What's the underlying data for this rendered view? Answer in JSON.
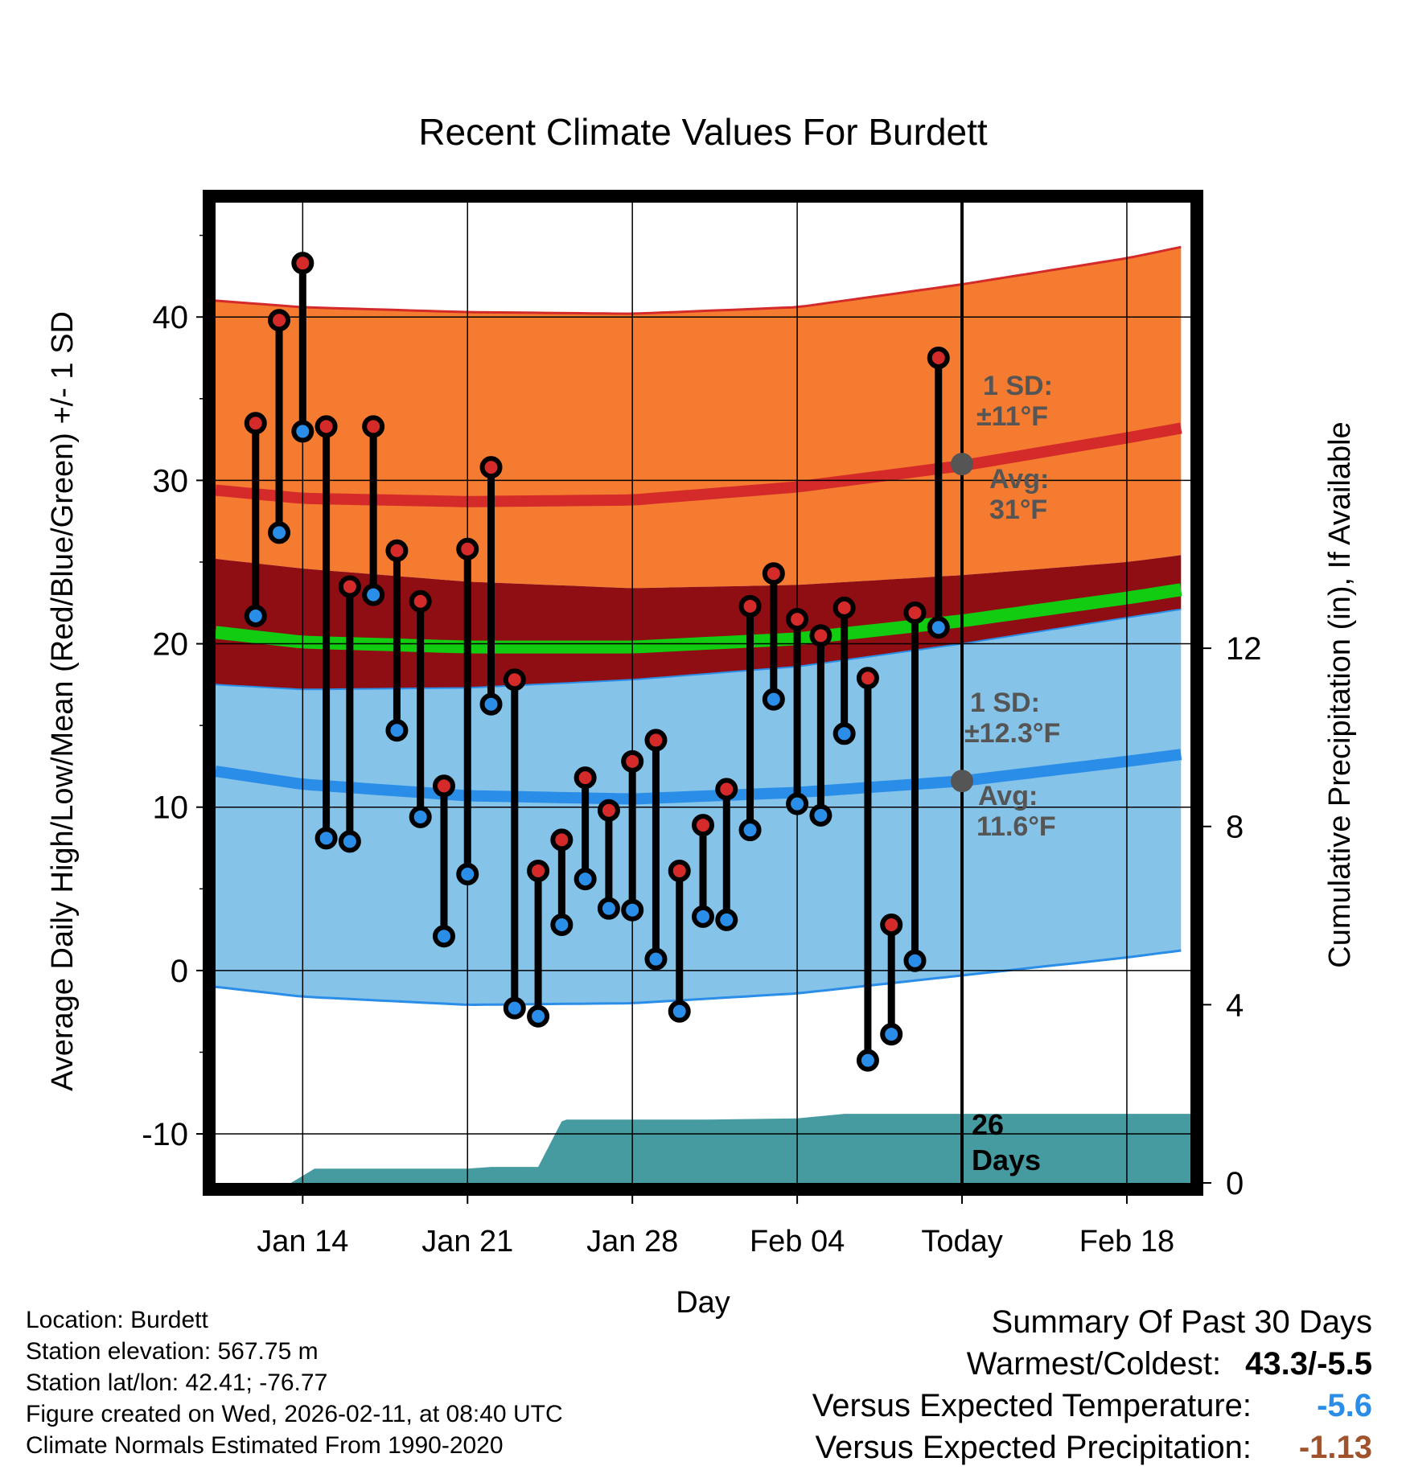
{
  "chart_data": {
    "type": "line",
    "title": "Recent Climate Values For Burdett",
    "xlabel": "Day",
    "ylabel": "Average Daily High/Low/Mean (Red/Blue/Green) +/- 1 SD",
    "y2label": "Cumulative Precipitation (in), If Available",
    "x_ticks": [
      "Jan 14",
      "Jan 21",
      "Jan 28",
      "Feb 04",
      "Today",
      "Feb 18"
    ],
    "x_tick_days": [
      3,
      10,
      17,
      24,
      31,
      38
    ],
    "xlim": [
      -0.7,
      40.7
    ],
    "ylim": [
      -13,
      47
    ],
    "y_ticks": [
      -10,
      0,
      10,
      20,
      30,
      40
    ],
    "y2lim": [
      0,
      22
    ],
    "y2_ticks": [
      0,
      4,
      8,
      12
    ],
    "today_day": 31,
    "grid": true,
    "normals": {
      "days": [
        -0.7,
        3,
        10,
        17,
        24,
        31,
        38,
        40.7
      ],
      "high_mean": [
        29.4,
        28.9,
        28.7,
        28.8,
        29.6,
        30.9,
        32.6,
        33.3
      ],
      "high_plus_sd": [
        41.0,
        40.6,
        40.3,
        40.2,
        40.6,
        42.0,
        43.6,
        44.4
      ],
      "high_minus_sd": [
        25.2,
        24.6,
        23.8,
        23.4,
        23.6,
        24.2,
        25.0,
        25.5
      ],
      "low_mean": [
        12.2,
        11.4,
        10.7,
        10.5,
        10.9,
        11.6,
        12.8,
        13.3
      ],
      "low_plus_sd": [
        17.5,
        17.2,
        17.3,
        17.8,
        18.6,
        20.0,
        21.6,
        22.2
      ],
      "low_minus_sd": [
        -1.0,
        -1.6,
        -2.1,
        -2.0,
        -1.4,
        -0.3,
        0.8,
        1.3
      ],
      "mean_mean": [
        20.7,
        20.1,
        19.8,
        19.8,
        20.3,
        21.4,
        22.8,
        23.4
      ]
    },
    "series": [
      {
        "name": "High",
        "color": "#d42a2a",
        "days": [
          1,
          2,
          3,
          4,
          5,
          6,
          7,
          8,
          9,
          10,
          11,
          12,
          13,
          14,
          15,
          16,
          17,
          18,
          19,
          20,
          21,
          22,
          23,
          24,
          25,
          26,
          27,
          28,
          29,
          30
        ],
        "values": [
          33.5,
          39.8,
          43.3,
          33.3,
          23.5,
          33.3,
          25.7,
          22.6,
          11.3,
          25.8,
          30.8,
          17.8,
          6.1,
          8.0,
          11.8,
          9.8,
          12.8,
          14.1,
          6.1,
          8.9,
          11.1,
          22.3,
          24.3,
          21.5,
          20.5,
          22.2,
          17.9,
          2.8,
          21.9,
          37.5
        ]
      },
      {
        "name": "Low",
        "color": "#2a8ee8",
        "days": [
          1,
          2,
          3,
          4,
          5,
          6,
          7,
          8,
          9,
          10,
          11,
          12,
          13,
          14,
          15,
          16,
          17,
          18,
          19,
          20,
          21,
          22,
          23,
          24,
          25,
          26,
          27,
          28,
          29,
          30
        ],
        "values": [
          21.7,
          26.8,
          33.0,
          8.1,
          7.9,
          23.0,
          14.7,
          9.4,
          2.1,
          5.9,
          16.3,
          -2.3,
          -2.8,
          2.8,
          5.6,
          3.8,
          3.7,
          0.7,
          -2.5,
          3.3,
          3.1,
          8.6,
          16.6,
          10.2,
          9.5,
          14.5,
          -5.5,
          -3.9,
          0.6,
          21.0
        ]
      },
      {
        "name": "Cumulative Precipitation",
        "color": "#469ba1",
        "days": [
          2.5,
          3.5,
          10,
          11,
          13,
          14,
          14.2,
          20,
          24,
          26,
          40.7
        ],
        "values": [
          0,
          0.32,
          0.32,
          0.36,
          0.36,
          1.38,
          1.42,
          1.42,
          1.45,
          1.55,
          1.55
        ]
      }
    ],
    "annotations": {
      "high_sd_label": "1 SD:",
      "high_sd_value": "±11°F",
      "high_avg_label": "Avg:",
      "high_avg_value": "31°F",
      "high_avg": 31,
      "low_sd_label": "1 SD:",
      "low_sd_value": "±12.3°F",
      "low_avg_label": "Avg:",
      "low_avg_value": "11.6°F",
      "low_avg": 11.6,
      "precip_days_number": "26",
      "precip_days_word": "Days"
    }
  },
  "footer": {
    "location": "Location: Burdett",
    "elevation": "Station elevation: 567.75 m",
    "latlon": "Station lat/lon: 42.41; -76.77",
    "created": "Figure created on Wed, 2026-02-11, at 08:40 UTC",
    "normals": "Climate Normals Estimated From 1990-2020"
  },
  "summary": {
    "title": "Summary Of Past 30 Days",
    "warm_cold_label": "Warmest/Coldest:",
    "warm_cold_value": "43.3/-5.5",
    "temp_label": "Versus Expected Temperature:",
    "temp_value": "-5.6",
    "temp_color": "#2a8ee8",
    "precip_label": "Versus Expected Precipitation:",
    "precip_value": "-1.13",
    "precip_color": "#a0522d"
  },
  "colors": {
    "high_band": "#f47b2f",
    "high_line": "#d42a2a",
    "mid_band": "#8e0e14",
    "low_band": "#85c3e8",
    "low_line": "#2a8ee8",
    "mean_line": "#11cc11",
    "precip": "#469ba1",
    "annotation": "#555555"
  }
}
